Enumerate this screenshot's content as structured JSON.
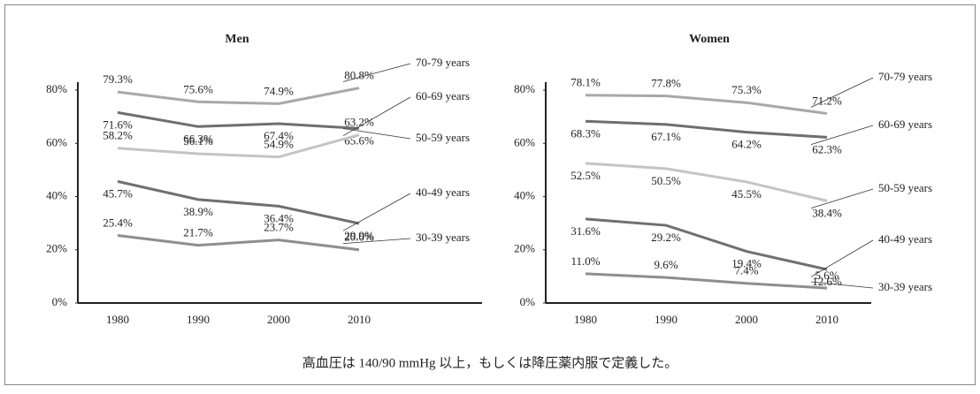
{
  "chart_data": [
    {
      "type": "line",
      "title": "Men",
      "categories": [
        "1980",
        "1990",
        "2000",
        "2010"
      ],
      "ylim": [
        0,
        83
      ],
      "yticks": [
        {
          "value": 0,
          "label": "0%"
        },
        {
          "value": 20,
          "label": "20%"
        },
        {
          "value": 40,
          "label": "40%"
        },
        {
          "value": 60,
          "label": "60%"
        },
        {
          "value": 80,
          "label": "80%"
        }
      ],
      "series": [
        {
          "name": "70-79 years",
          "color": "#a8a8a8",
          "values": [
            79.3,
            75.6,
            74.9,
            80.8
          ],
          "value_labels": [
            "79.3%",
            "75.6%",
            "74.9%",
            "80.8%"
          ]
        },
        {
          "name": "60-69 years",
          "color": "#6e6e6e",
          "values": [
            71.6,
            66.3,
            67.4,
            65.6
          ],
          "value_labels": [
            "71.6%",
            "66.3%",
            "67.4%",
            "65.6%"
          ]
        },
        {
          "name": "50-59 years",
          "color": "#c4c4c4",
          "values": [
            58.2,
            56.1,
            54.9,
            63.2
          ],
          "value_labels": [
            "58.2%",
            "56.1%",
            "54.9%",
            "63.2%"
          ]
        },
        {
          "name": "40-49 years",
          "color": "#707070",
          "values": [
            45.7,
            38.9,
            36.4,
            29.9
          ],
          "value_labels": [
            "45.7%",
            "38.9%",
            "36.4%",
            "29.9%"
          ]
        },
        {
          "name": "30-39 years",
          "color": "#8e8e8e",
          "values": [
            25.4,
            21.7,
            23.7,
            20.0
          ],
          "value_labels": [
            "25.4%",
            "21.7%",
            "23.7%",
            "20.0%"
          ]
        }
      ]
    },
    {
      "type": "line",
      "title": "Women",
      "categories": [
        "1980",
        "1990",
        "2000",
        "2010"
      ],
      "ylim": [
        0,
        83
      ],
      "yticks": [
        {
          "value": 0,
          "label": "0%"
        },
        {
          "value": 20,
          "label": "20%"
        },
        {
          "value": 40,
          "label": "40%"
        },
        {
          "value": 60,
          "label": "60%"
        },
        {
          "value": 80,
          "label": "80%"
        }
      ],
      "series": [
        {
          "name": "70-79 years",
          "color": "#a8a8a8",
          "values": [
            78.1,
            77.8,
            75.3,
            71.2
          ],
          "value_labels": [
            "78.1%",
            "77.8%",
            "75.3%",
            "71.2%"
          ]
        },
        {
          "name": "60-69 years",
          "color": "#6e6e6e",
          "values": [
            68.3,
            67.1,
            64.2,
            62.3
          ],
          "value_labels": [
            "68.3%",
            "67.1%",
            "64.2%",
            "62.3%"
          ]
        },
        {
          "name": "50-59 years",
          "color": "#c4c4c4",
          "values": [
            52.5,
            50.5,
            45.5,
            38.4
          ],
          "value_labels": [
            "52.5%",
            "50.5%",
            "45.5%",
            "38.4%"
          ]
        },
        {
          "name": "40-49 years",
          "color": "#707070",
          "values": [
            31.6,
            29.2,
            19.4,
            12.6
          ],
          "value_labels": [
            "31.6%",
            "29.2%",
            "19.4%",
            "12.6%"
          ]
        },
        {
          "name": "30-39 years",
          "color": "#8e8e8e",
          "values": [
            11.0,
            9.6,
            7.4,
            5.6
          ],
          "value_labels": [
            "11.0%",
            "9.6%",
            "7.4%",
            "5.6%"
          ]
        }
      ]
    }
  ],
  "caption": "高血圧は 140/90 mmHg 以上，もしくは降圧薬内服で定義した。"
}
